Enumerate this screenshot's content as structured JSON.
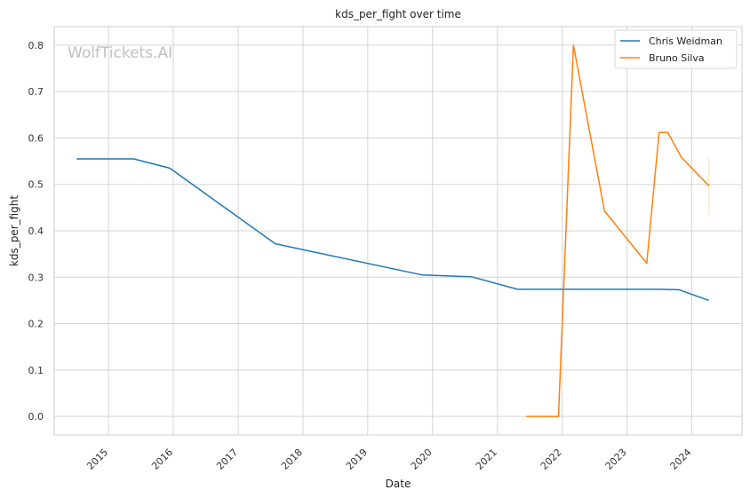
{
  "chart_data": {
    "type": "line",
    "title": "kds_per_fight over time",
    "xlabel": "Date",
    "ylabel": "kds_per_fight",
    "watermark": "WolfTickets.AI",
    "xlim": [
      "2014-03-01",
      "2024-10-10"
    ],
    "ylim": [
      -0.04,
      0.84
    ],
    "x_ticks": [
      "2015",
      "2016",
      "2017",
      "2018",
      "2019",
      "2020",
      "2021",
      "2022",
      "2023",
      "2024"
    ],
    "y_ticks": [
      "0.0",
      "0.1",
      "0.2",
      "0.3",
      "0.4",
      "0.5",
      "0.6",
      "0.7",
      "0.8"
    ],
    "grid": true,
    "legend_position": "top-right",
    "series": [
      {
        "name": "Chris Weidman",
        "color": "#1f77b4",
        "points": [
          [
            "2014-07-05",
            0.555
          ],
          [
            "2015-05-23",
            0.555
          ],
          [
            "2015-12-12",
            0.535
          ],
          [
            "2017-07-29",
            0.372
          ],
          [
            "2019-11-02",
            0.305
          ],
          [
            "2020-08-08",
            0.301
          ],
          [
            "2021-04-24",
            0.274
          ],
          [
            "2023-07-01",
            0.274
          ],
          [
            "2023-10-21",
            0.273
          ],
          [
            "2024-04-06",
            0.25
          ]
        ]
      },
      {
        "name": "Bruno Silva",
        "color": "#ff7f0e",
        "points": [
          [
            "2021-06-12",
            0.0
          ],
          [
            "2021-12-11",
            0.0
          ],
          [
            "2022-03-05",
            0.8
          ],
          [
            "2022-08-27",
            0.443
          ],
          [
            "2023-04-22",
            0.33
          ],
          [
            "2023-07-01",
            0.612
          ],
          [
            "2023-08-19",
            0.612
          ],
          [
            "2023-11-04",
            0.558
          ],
          [
            "2024-04-06",
            0.497
          ]
        ],
        "error_bar": {
          "x": "2024-04-06",
          "low": 0.435,
          "high": 0.558
        }
      }
    ]
  }
}
